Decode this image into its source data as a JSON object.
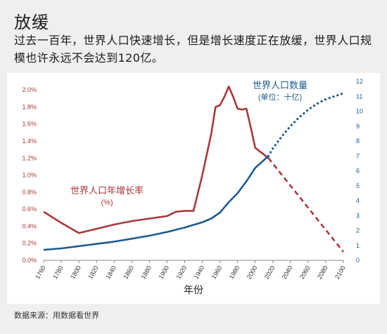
{
  "page": {
    "title": "放缓",
    "subtitle": "过去一百年，世界人口快速增长，但是增长速度正在放缓，世界人口规模也许永远不会达到120亿。",
    "source": "数据来源：用数据看世界"
  },
  "chart_data": {
    "type": "line",
    "xlabel": "年份",
    "x_ticks": [
      1760,
      1780,
      1800,
      1820,
      1840,
      1860,
      1880,
      1900,
      1920,
      1940,
      1960,
      1980,
      2000,
      2020,
      2040,
      2060,
      2080,
      2100
    ],
    "xlim": [
      1760,
      2100
    ],
    "left_axis": {
      "ticks": [
        "0.0%",
        "0.2%",
        "0.4%",
        "0.6%",
        "0.8%",
        "1.0%",
        "1.2%",
        "1.4%",
        "1.6%",
        "1.8%",
        "2.0%"
      ],
      "ylim": [
        0,
        2.1
      ],
      "color": "#a8383b"
    },
    "right_axis": {
      "ticks": [
        "0",
        "1",
        "2",
        "3",
        "4",
        "5",
        "6",
        "7",
        "8",
        "9",
        "10",
        "11",
        "12"
      ],
      "ylim": [
        0,
        12
      ],
      "color": "#1e5b8e"
    },
    "series": [
      {
        "name": "世界人口年增长率",
        "unit_label": "(%)",
        "axis": "left",
        "color": "#a8383b",
        "x": [
          1760,
          1780,
          1800,
          1820,
          1840,
          1860,
          1880,
          1900,
          1910,
          1920,
          1930,
          1940,
          1950,
          1955,
          1960,
          1965,
          1970,
          1975,
          1980,
          1985,
          1990,
          1995,
          2000,
          2015
        ],
        "y": [
          0.57,
          0.44,
          0.32,
          0.37,
          0.42,
          0.46,
          0.49,
          0.52,
          0.57,
          0.58,
          0.58,
          1.0,
          1.48,
          1.8,
          1.82,
          1.92,
          2.04,
          1.92,
          1.78,
          1.77,
          1.78,
          1.56,
          1.32,
          1.2
        ],
        "projection": {
          "x": [
            2015,
            2100
          ],
          "y": [
            1.2,
            0.1
          ]
        }
      },
      {
        "name": "世界人口数量",
        "unit_label": "(单位：十亿)",
        "axis": "right",
        "color": "#1e5b8e",
        "x": [
          1760,
          1780,
          1800,
          1820,
          1840,
          1860,
          1880,
          1900,
          1920,
          1940,
          1950,
          1960,
          1970,
          1980,
          1990,
          2000,
          2015
        ],
        "y": [
          0.7,
          0.8,
          0.95,
          1.1,
          1.25,
          1.45,
          1.65,
          1.9,
          2.2,
          2.55,
          2.8,
          3.2,
          3.9,
          4.5,
          5.3,
          6.2,
          7.0
        ],
        "projection": {
          "x": [
            2015,
            2020,
            2030,
            2040,
            2050,
            2060,
            2070,
            2080,
            2090,
            2100
          ],
          "y": [
            7.0,
            7.5,
            8.3,
            9.0,
            9.6,
            10.1,
            10.5,
            10.8,
            11.0,
            11.2
          ]
        }
      }
    ],
    "grid": false,
    "legend": "inline labels"
  }
}
